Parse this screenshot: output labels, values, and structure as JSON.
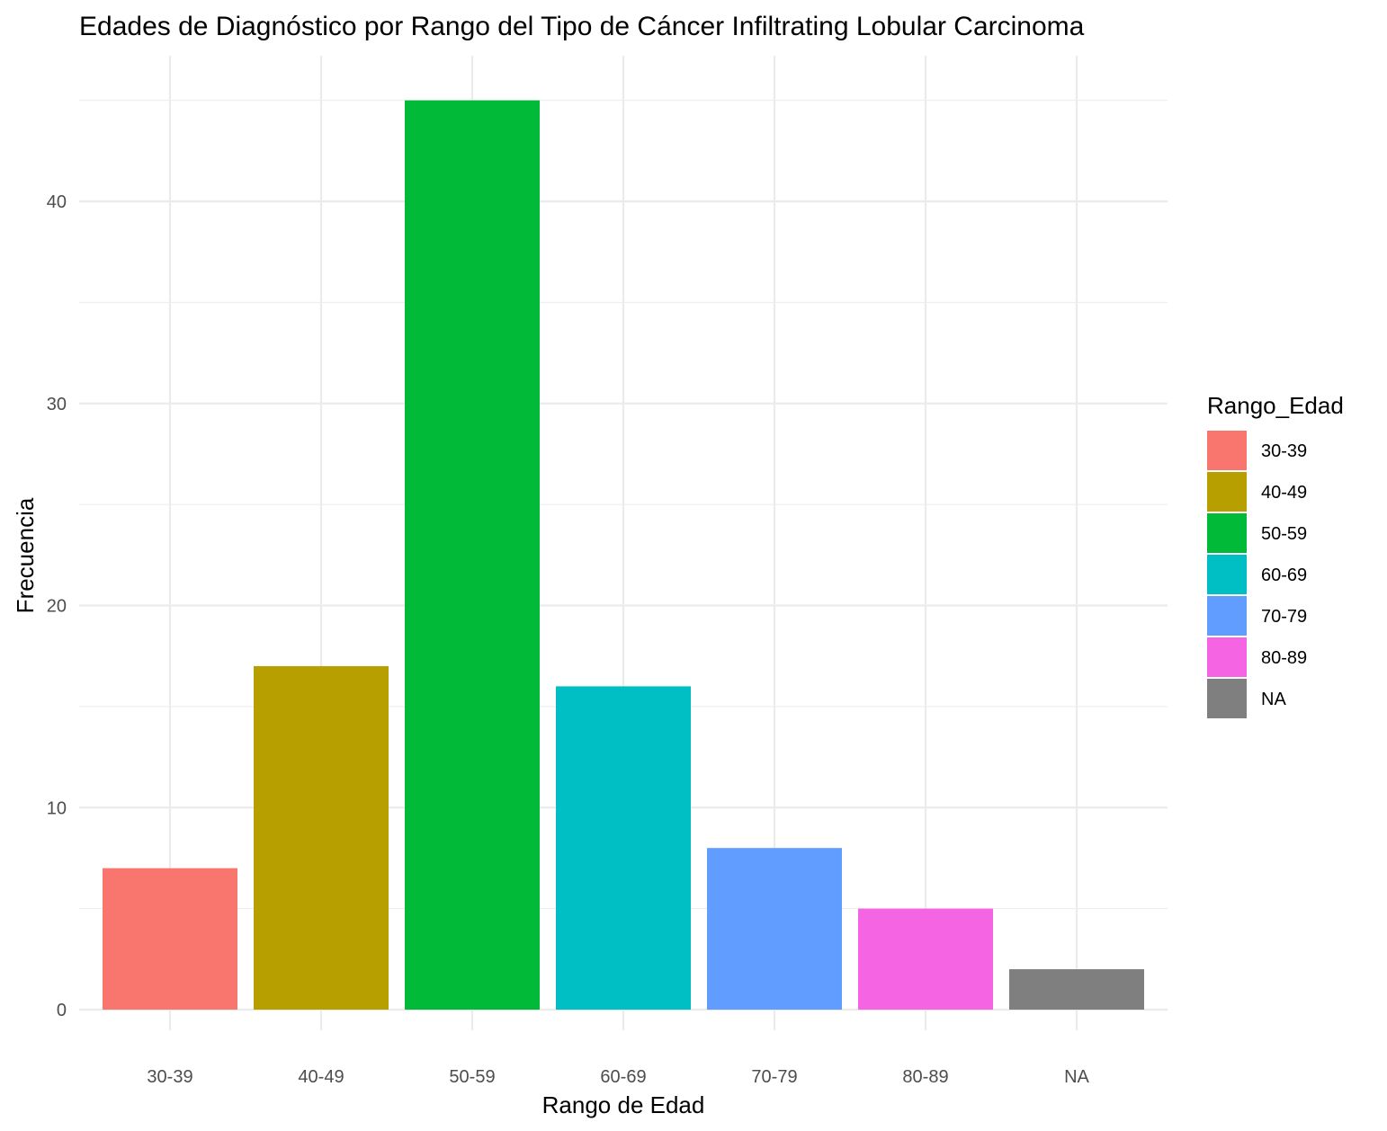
{
  "chart_data": {
    "type": "bar",
    "title": "Edades de Diagnóstico por Rango del Tipo de Cáncer Infiltrating Lobular Carcinoma",
    "xlabel": "Rango de Edad",
    "ylabel": "Frecuencia",
    "categories": [
      "30-39",
      "40-49",
      "50-59",
      "60-69",
      "70-79",
      "80-89",
      "NA"
    ],
    "values": [
      7,
      17,
      45,
      16,
      8,
      5,
      2
    ],
    "colors": [
      "#F8766D",
      "#B79F00",
      "#00BA38",
      "#00BFC4",
      "#619CFF",
      "#F564E3",
      "#7F7F7F"
    ],
    "ylim": [
      0,
      47.25
    ],
    "yticks": [
      0,
      10,
      20,
      30,
      40
    ],
    "grid": true,
    "legend": {
      "title": "Rango_Edad",
      "position": "right",
      "entries": [
        "30-39",
        "40-49",
        "50-59",
        "60-69",
        "70-79",
        "80-89",
        "NA"
      ]
    }
  }
}
